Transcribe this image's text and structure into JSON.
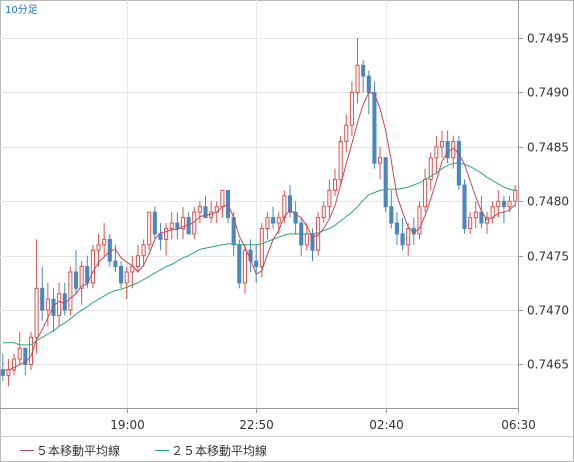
{
  "chart_data": {
    "type": "candlestick",
    "timeframe_label": "10分足",
    "x_ticks": [
      "19:00",
      "22:50",
      "02:40",
      "06:30"
    ],
    "y_ticks": [
      "0.7495",
      "0.7490",
      "0.7485",
      "0.7480",
      "0.7475",
      "0.7470",
      "0.7465"
    ],
    "ylim": [
      0.7461,
      0.74985
    ],
    "grid": true,
    "legend": [
      {
        "label": "５本移動平均線",
        "color": "#c04a5a"
      },
      {
        "label": "２５本移動平均線",
        "color": "#2aa878"
      }
    ],
    "colors": {
      "up_candle": "#d9534f",
      "down_candle": "#4a86c0",
      "ma5": "#c04a5a",
      "ma25": "#2aa878",
      "timeframe_label": "#1a73c8"
    },
    "candles": [
      [
        0.74645,
        0.7466,
        0.74635,
        0.7464
      ],
      [
        0.7464,
        0.74655,
        0.7463,
        0.74645
      ],
      [
        0.74645,
        0.7466,
        0.7464,
        0.74655
      ],
      [
        0.74655,
        0.7468,
        0.7465,
        0.74665
      ],
      [
        0.74665,
        0.74665,
        0.7464,
        0.7465
      ],
      [
        0.7465,
        0.7468,
        0.74645,
        0.74675
      ],
      [
        0.74675,
        0.74765,
        0.7466,
        0.7472
      ],
      [
        0.7472,
        0.7474,
        0.7469,
        0.747
      ],
      [
        0.747,
        0.74725,
        0.74685,
        0.7471
      ],
      [
        0.7471,
        0.7472,
        0.7468,
        0.74695
      ],
      [
        0.74695,
        0.74725,
        0.74685,
        0.74715
      ],
      [
        0.74715,
        0.74725,
        0.74695,
        0.747
      ],
      [
        0.747,
        0.7474,
        0.74695,
        0.74735
      ],
      [
        0.74735,
        0.74755,
        0.74715,
        0.7472
      ],
      [
        0.7472,
        0.74745,
        0.74705,
        0.7474
      ],
      [
        0.7474,
        0.7475,
        0.7472,
        0.74725
      ],
      [
        0.74725,
        0.7476,
        0.7472,
        0.74755
      ],
      [
        0.74755,
        0.7477,
        0.7474,
        0.7476
      ],
      [
        0.7476,
        0.7478,
        0.7475,
        0.74765
      ],
      [
        0.74765,
        0.7477,
        0.7474,
        0.74745
      ],
      [
        0.74745,
        0.7476,
        0.74735,
        0.7474
      ],
      [
        0.7474,
        0.74745,
        0.7472,
        0.74725
      ],
      [
        0.74725,
        0.7474,
        0.7471,
        0.74735
      ],
      [
        0.74735,
        0.7475,
        0.7472,
        0.7474
      ],
      [
        0.7474,
        0.7476,
        0.74735,
        0.7475
      ],
      [
        0.7475,
        0.74765,
        0.7474,
        0.7476
      ],
      [
        0.7476,
        0.7479,
        0.74755,
        0.7479
      ],
      [
        0.7479,
        0.74795,
        0.74765,
        0.7477
      ],
      [
        0.7477,
        0.7478,
        0.74755,
        0.74765
      ],
      [
        0.74765,
        0.7478,
        0.7475,
        0.74775
      ],
      [
        0.74775,
        0.7479,
        0.74765,
        0.7478
      ],
      [
        0.7478,
        0.7479,
        0.74765,
        0.74775
      ],
      [
        0.74775,
        0.74795,
        0.74765,
        0.74785
      ],
      [
        0.74785,
        0.7479,
        0.7477,
        0.7477
      ],
      [
        0.7477,
        0.74795,
        0.74765,
        0.7479
      ],
      [
        0.7479,
        0.748,
        0.7478,
        0.74795
      ],
      [
        0.74795,
        0.74805,
        0.74785,
        0.74785
      ],
      [
        0.74785,
        0.748,
        0.7478,
        0.7479
      ],
      [
        0.7479,
        0.748,
        0.7478,
        0.74795
      ],
      [
        0.74795,
        0.7481,
        0.74785,
        0.7481
      ],
      [
        0.7481,
        0.7481,
        0.7478,
        0.74785
      ],
      [
        0.74785,
        0.7479,
        0.7475,
        0.7476
      ],
      [
        0.7476,
        0.74765,
        0.7472,
        0.74725
      ],
      [
        0.74725,
        0.7476,
        0.74715,
        0.74755
      ],
      [
        0.74755,
        0.74765,
        0.74735,
        0.74745
      ],
      [
        0.74745,
        0.7476,
        0.74725,
        0.7474
      ],
      [
        0.7474,
        0.7478,
        0.7473,
        0.74775
      ],
      [
        0.74775,
        0.7479,
        0.74765,
        0.74785
      ],
      [
        0.74785,
        0.74795,
        0.74775,
        0.7478
      ],
      [
        0.7478,
        0.7479,
        0.7477,
        0.74785
      ],
      [
        0.74785,
        0.7481,
        0.7478,
        0.74805
      ],
      [
        0.74805,
        0.74815,
        0.74785,
        0.7479
      ],
      [
        0.7479,
        0.748,
        0.7477,
        0.7478
      ],
      [
        0.7478,
        0.74785,
        0.7475,
        0.7476
      ],
      [
        0.7476,
        0.7478,
        0.74755,
        0.7477
      ],
      [
        0.7477,
        0.74775,
        0.74745,
        0.74755
      ],
      [
        0.74755,
        0.7479,
        0.7475,
        0.74785
      ],
      [
        0.74785,
        0.748,
        0.7478,
        0.74795
      ],
      [
        0.74795,
        0.7482,
        0.74785,
        0.7481
      ],
      [
        0.7481,
        0.7483,
        0.74805,
        0.7482
      ],
      [
        0.7482,
        0.7486,
        0.74815,
        0.74855
      ],
      [
        0.74855,
        0.7488,
        0.74845,
        0.7487
      ],
      [
        0.7487,
        0.7491,
        0.7486,
        0.749
      ],
      [
        0.749,
        0.7495,
        0.7489,
        0.74925
      ],
      [
        0.74925,
        0.7493,
        0.749,
        0.74915
      ],
      [
        0.74915,
        0.7492,
        0.7488,
        0.749
      ],
      [
        0.749,
        0.7491,
        0.7483,
        0.74835
      ],
      [
        0.74835,
        0.7485,
        0.7482,
        0.7484
      ],
      [
        0.7484,
        0.7484,
        0.7479,
        0.74795
      ],
      [
        0.74795,
        0.7481,
        0.74775,
        0.7478
      ],
      [
        0.7478,
        0.7479,
        0.7476,
        0.7477
      ],
      [
        0.7477,
        0.74785,
        0.74755,
        0.7476
      ],
      [
        0.7476,
        0.7478,
        0.7475,
        0.74775
      ],
      [
        0.74775,
        0.74785,
        0.7476,
        0.7477
      ],
      [
        0.7477,
        0.748,
        0.74765,
        0.74795
      ],
      [
        0.74795,
        0.7483,
        0.7479,
        0.7482
      ],
      [
        0.7482,
        0.74845,
        0.7481,
        0.7484
      ],
      [
        0.7484,
        0.7486,
        0.74825,
        0.7485
      ],
      [
        0.7485,
        0.74865,
        0.7484,
        0.74855
      ],
      [
        0.74855,
        0.74865,
        0.74835,
        0.7484
      ],
      [
        0.7484,
        0.7486,
        0.7483,
        0.74855
      ],
      [
        0.74855,
        0.7486,
        0.7481,
        0.74815
      ],
      [
        0.74815,
        0.7482,
        0.7477,
        0.74775
      ],
      [
        0.74775,
        0.7479,
        0.7477,
        0.74785
      ],
      [
        0.74785,
        0.748,
        0.74775,
        0.7479
      ],
      [
        0.7479,
        0.74805,
        0.74775,
        0.7478
      ],
      [
        0.7478,
        0.7479,
        0.7477,
        0.74785
      ],
      [
        0.74785,
        0.748,
        0.7478,
        0.74795
      ],
      [
        0.74795,
        0.7481,
        0.74785,
        0.748
      ],
      [
        0.748,
        0.74805,
        0.7478,
        0.74795
      ],
      [
        0.74795,
        0.74805,
        0.7479,
        0.748
      ],
      [
        0.748,
        0.74815,
        0.74795,
        0.7481
      ]
    ],
    "ma5": [
      0.74645,
      0.74645,
      0.74647,
      0.7465,
      0.74652,
      0.74658,
      0.74673,
      0.74682,
      0.74693,
      0.74704,
      0.74708,
      0.74706,
      0.74711,
      0.74715,
      0.74722,
      0.74724,
      0.74735,
      0.74744,
      0.74749,
      0.74754,
      0.74756,
      0.74748,
      0.74744,
      0.74741,
      0.74735,
      0.74741,
      0.74752,
      0.74765,
      0.74771,
      0.74772,
      0.74774,
      0.74774,
      0.74777,
      0.74778,
      0.74781,
      0.74786,
      0.74787,
      0.74788,
      0.7479,
      0.74795,
      0.74797,
      0.74785,
      0.74768,
      0.74758,
      0.74746,
      0.74733,
      0.74736,
      0.74751,
      0.74765,
      0.74773,
      0.74786,
      0.74792,
      0.74788,
      0.74785,
      0.74777,
      0.74767,
      0.74769,
      0.74775,
      0.74784,
      0.74796,
      0.74815,
      0.74835,
      0.74853,
      0.74872,
      0.74889,
      0.749,
      0.74899,
      0.74885,
      0.74865,
      0.74837,
      0.74805,
      0.7479,
      0.74776,
      0.74771,
      0.74775,
      0.74787,
      0.74802,
      0.74819,
      0.74837,
      0.74845,
      0.74849,
      0.74844,
      0.74834,
      0.74819,
      0.74804,
      0.74791,
      0.74783,
      0.74785,
      0.74789,
      0.7479,
      0.74792,
      0.74797
    ],
    "ma25": [
      0.7467,
      0.7467,
      0.7467,
      0.74668,
      0.74668,
      0.74668,
      0.74672,
      0.74675,
      0.74678,
      0.74681,
      0.74685,
      0.74688,
      0.74692,
      0.74696,
      0.747,
      0.74703,
      0.74707,
      0.7471,
      0.74713,
      0.74716,
      0.74718,
      0.74719,
      0.74721,
      0.74723,
      0.74725,
      0.74728,
      0.74731,
      0.74734,
      0.74737,
      0.7474,
      0.74742,
      0.74745,
      0.74748,
      0.7475,
      0.74753,
      0.74756,
      0.74757,
      0.74758,
      0.74759,
      0.7476,
      0.74761,
      0.74761,
      0.7476,
      0.7476,
      0.7476,
      0.7476,
      0.74761,
      0.74763,
      0.74765,
      0.74767,
      0.74769,
      0.7477,
      0.7477,
      0.7477,
      0.7477,
      0.7477,
      0.74771,
      0.74773,
      0.74775,
      0.74778,
      0.74782,
      0.74786,
      0.7479,
      0.74795,
      0.74801,
      0.74806,
      0.74808,
      0.7481,
      0.74811,
      0.74811,
      0.74811,
      0.74812,
      0.74813,
      0.74815,
      0.74817,
      0.7482,
      0.74823,
      0.74826,
      0.7483,
      0.74833,
      0.74835,
      0.74835,
      0.74834,
      0.74832,
      0.74829,
      0.74826,
      0.74822,
      0.74819,
      0.74816,
      0.74813,
      0.74811,
      0.7481
    ]
  }
}
